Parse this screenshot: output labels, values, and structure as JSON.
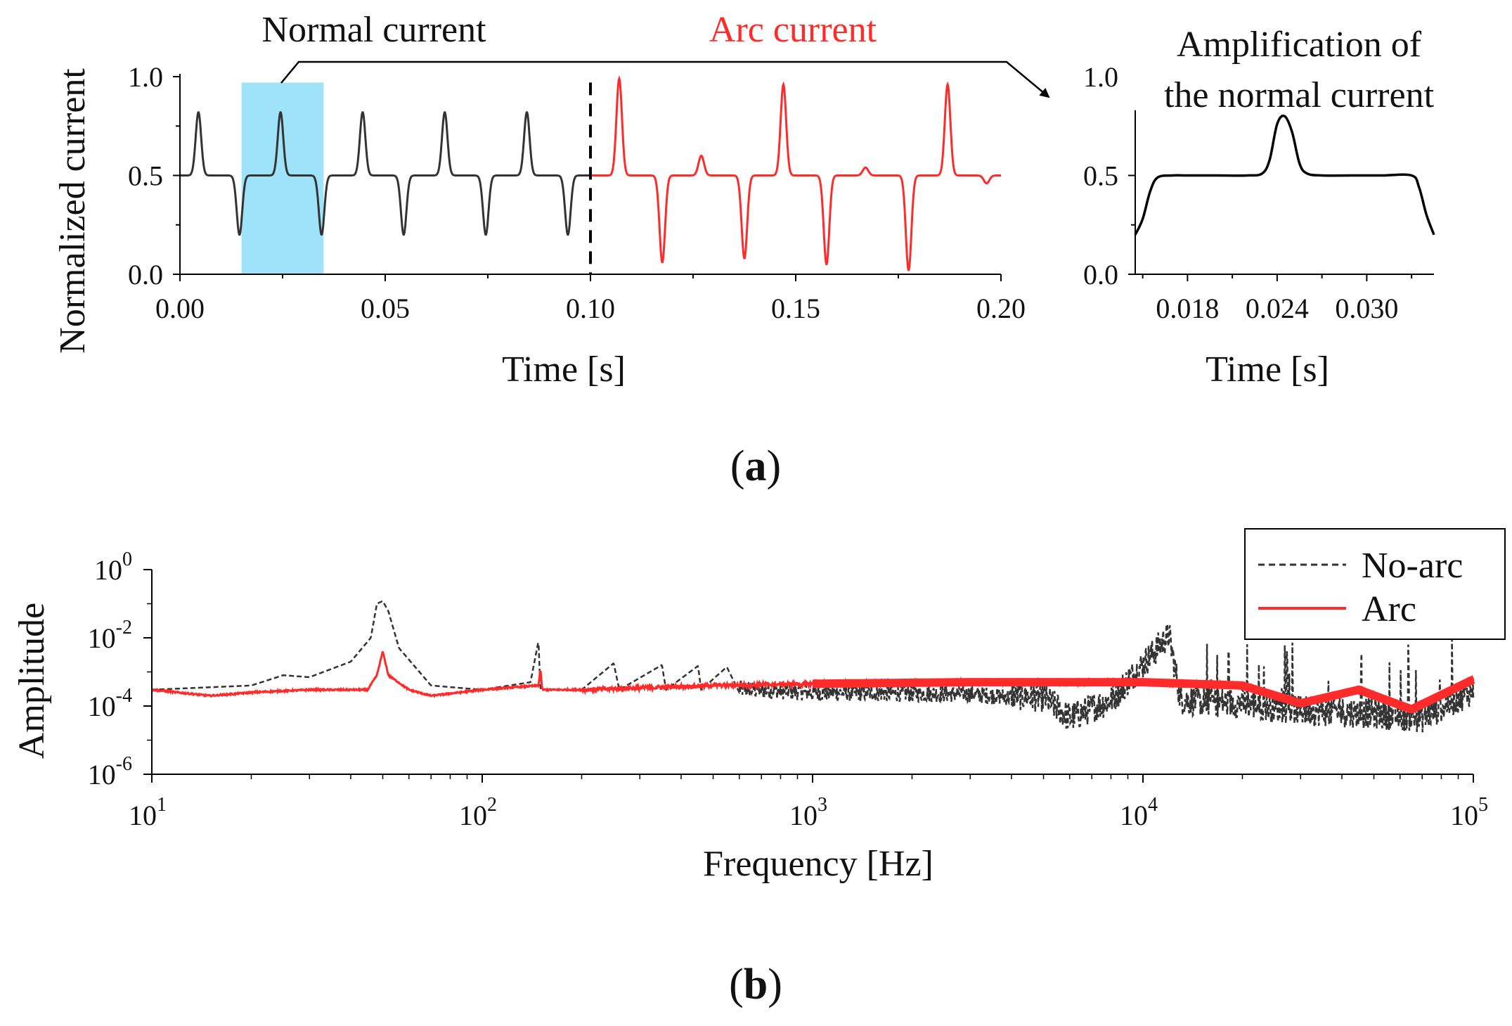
{
  "figure": {
    "panel_a_label": {
      "open": "(",
      "letter": "a",
      "close": ")"
    },
    "panel_b_label": {
      "open": "(",
      "letter": "b",
      "close": ")"
    }
  },
  "chart_data": [
    {
      "type": "line",
      "panel": "a-main",
      "xlabel": "Time [s]",
      "ylabel": "Normalized current",
      "xlim": [
        0,
        0.2
      ],
      "ylim": [
        0,
        1
      ],
      "xticks": [
        "0.00",
        "0.05",
        "0.10",
        "0.15",
        "0.20"
      ],
      "yticks": [
        "0.0",
        "0.5",
        "1.0"
      ],
      "annotations": {
        "normal": "Normal current",
        "arc": "Arc current"
      },
      "highlight_range": [
        0.015,
        0.035
      ],
      "divider_x": 0.1,
      "series": [
        {
          "color": "#333333",
          "x_range": [
            0,
            0.1
          ],
          "baseline": 0.5,
          "pos_peaks": [
            [
              0.0045,
              0.82
            ],
            [
              0.0245,
              0.82
            ],
            [
              0.0445,
              0.82
            ],
            [
              0.0645,
              0.82
            ],
            [
              0.0845,
              0.82
            ]
          ],
          "neg_peaks": [
            [
              0.0145,
              0.2
            ],
            [
              0.0345,
              0.2
            ],
            [
              0.0545,
              0.2
            ],
            [
              0.0745,
              0.2
            ],
            [
              0.0945,
              0.2
            ]
          ]
        },
        {
          "color": "#ff2b2b",
          "x_range": [
            0.1,
            0.2
          ],
          "baseline": 0.5,
          "pos_peaks": [
            [
              0.107,
              0.99
            ],
            [
              0.127,
              0.6
            ],
            [
              0.147,
              0.96
            ],
            [
              0.167,
              0.54
            ],
            [
              0.187,
              0.96
            ]
          ],
          "neg_peaks": [
            [
              0.1175,
              0.06
            ],
            [
              0.1375,
              0.08
            ],
            [
              0.1575,
              0.05
            ],
            [
              0.1775,
              0.02
            ],
            [
              0.1965,
              0.46
            ]
          ]
        }
      ]
    },
    {
      "type": "line",
      "panel": "a-inset",
      "title": "Amplification of the normal current",
      "xlabel": "Time [s]",
      "xlim": [
        0.0145,
        0.0345
      ],
      "ylim": [
        0,
        1
      ],
      "xticks": [
        "0.018",
        "0.024",
        "0.030"
      ],
      "xtick_values": [
        0.018,
        0.024,
        0.03
      ],
      "yticks": [
        "0.0",
        "0.5",
        "1.0"
      ],
      "series": [
        {
          "color": "#000000",
          "x": [
            0.0145,
            0.015,
            0.0155,
            0.016,
            0.017,
            0.018,
            0.02,
            0.022,
            0.023,
            0.0235,
            0.024,
            0.0245,
            0.025,
            0.0255,
            0.026,
            0.027,
            0.029,
            0.031,
            0.033,
            0.0335,
            0.034,
            0.0345
          ],
          "y": [
            0.2,
            0.28,
            0.42,
            0.49,
            0.5,
            0.5,
            0.5,
            0.5,
            0.51,
            0.58,
            0.76,
            0.8,
            0.72,
            0.56,
            0.51,
            0.5,
            0.5,
            0.5,
            0.5,
            0.44,
            0.3,
            0.2
          ]
        }
      ]
    },
    {
      "type": "line",
      "panel": "b",
      "xlabel": "Frequency [Hz]",
      "ylabel": "Amplitude",
      "xscale": "log",
      "yscale": "log",
      "xlim": [
        10,
        100000
      ],
      "ylim": [
        1e-06,
        1
      ],
      "xticks": [
        {
          "base": "10",
          "exp": "1"
        },
        {
          "base": "10",
          "exp": "2"
        },
        {
          "base": "10",
          "exp": "3"
        },
        {
          "base": "10",
          "exp": "4"
        },
        {
          "base": "10",
          "exp": "5"
        }
      ],
      "yticks": [
        {
          "base": "10",
          "exp": "0"
        },
        {
          "base": "10",
          "exp": "-2"
        },
        {
          "base": "10",
          "exp": "-4"
        },
        {
          "base": "10",
          "exp": "-6"
        }
      ],
      "legend": {
        "position": "top-right"
      },
      "series": [
        {
          "name": "No-arc",
          "color": "#333333",
          "style": "dashed",
          "points": [
            [
              10,
              0.0003
            ],
            [
              20,
              0.0004
            ],
            [
              25,
              0.0008
            ],
            [
              30,
              0.0007
            ],
            [
              40,
              0.002
            ],
            [
              46,
              0.01
            ],
            [
              48,
              0.1
            ],
            [
              50,
              0.12
            ],
            [
              52,
              0.06
            ],
            [
              56,
              0.005
            ],
            [
              70,
              0.0004
            ],
            [
              100,
              0.0003
            ],
            [
              140,
              0.0005
            ],
            [
              148,
              0.008
            ],
            [
              150,
              0.0003
            ],
            [
              200,
              0.0003
            ],
            [
              250,
              0.0018
            ],
            [
              260,
              0.0003
            ],
            [
              350,
              0.0016
            ],
            [
              360,
              0.0003
            ],
            [
              450,
              0.0015
            ],
            [
              460,
              0.0003
            ],
            [
              550,
              0.0014
            ],
            [
              600,
              0.00025
            ],
            [
              1000,
              0.0002
            ],
            [
              3000,
              0.00018
            ],
            [
              5000,
              0.00012
            ],
            [
              6000,
              3e-05
            ],
            [
              8000,
              0.0001
            ],
            [
              12000,
              0.008
            ],
            [
              13000,
              0.0001
            ],
            [
              20000,
              8e-05
            ],
            [
              30000,
              5e-05
            ],
            [
              50000,
              4e-05
            ],
            [
              70000,
              3e-05
            ],
            [
              100000,
              0.0002
            ]
          ]
        },
        {
          "name": "Arc",
          "color": "#ff2b2b",
          "style": "solid",
          "points": [
            [
              10,
              0.0003
            ],
            [
              15,
              0.0002
            ],
            [
              20,
              0.00025
            ],
            [
              30,
              0.0003
            ],
            [
              45,
              0.0003
            ],
            [
              48,
              0.0008
            ],
            [
              50,
              0.004
            ],
            [
              52,
              0.0008
            ],
            [
              60,
              0.0003
            ],
            [
              70,
              0.0002
            ],
            [
              100,
              0.0003
            ],
            [
              148,
              0.0004
            ],
            [
              150,
              0.0012
            ],
            [
              152,
              0.0003
            ],
            [
              200,
              0.0003
            ],
            [
              500,
              0.0004
            ],
            [
              1000,
              0.00045
            ],
            [
              3000,
              0.0005
            ],
            [
              10000,
              0.0005
            ],
            [
              20000,
              0.0004
            ],
            [
              30000,
              0.00012
            ],
            [
              45000,
              0.0003
            ],
            [
              65000,
              8e-05
            ],
            [
              100000,
              0.0006
            ]
          ]
        }
      ]
    }
  ]
}
